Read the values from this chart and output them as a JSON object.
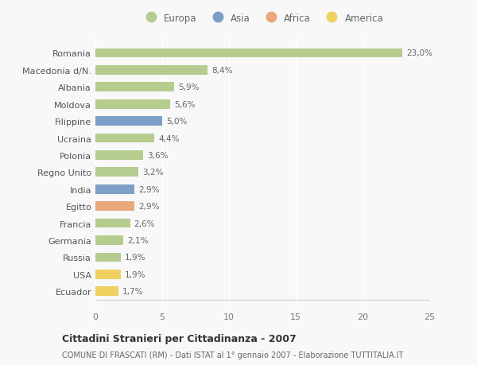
{
  "countries": [
    "Romania",
    "Macedonia d/N.",
    "Albania",
    "Moldova",
    "Filippine",
    "Ucraina",
    "Polonia",
    "Regno Unito",
    "India",
    "Egitto",
    "Francia",
    "Germania",
    "Russia",
    "USA",
    "Ecuador"
  ],
  "values": [
    23.0,
    8.4,
    5.9,
    5.6,
    5.0,
    4.4,
    3.6,
    3.2,
    2.9,
    2.9,
    2.6,
    2.1,
    1.9,
    1.9,
    1.7
  ],
  "labels": [
    "23,0%",
    "8,4%",
    "5,9%",
    "5,6%",
    "5,0%",
    "4,4%",
    "3,6%",
    "3,2%",
    "2,9%",
    "2,9%",
    "2,6%",
    "2,1%",
    "1,9%",
    "1,9%",
    "1,7%"
  ],
  "continents": [
    "Europa",
    "Europa",
    "Europa",
    "Europa",
    "Asia",
    "Europa",
    "Europa",
    "Europa",
    "Asia",
    "Africa",
    "Europa",
    "Europa",
    "Europa",
    "America",
    "America"
  ],
  "colors": {
    "Europa": "#b5cc8e",
    "Asia": "#7b9fc7",
    "Africa": "#e8a87c",
    "America": "#f0d060"
  },
  "title": "Cittadini Stranieri per Cittadinanza - 2007",
  "subtitle": "COMUNE DI FRASCATI (RM) - Dati ISTAT al 1° gennaio 2007 - Elaborazione TUTTITALIA.IT",
  "xlim": [
    0,
    25
  ],
  "xticks": [
    0,
    5,
    10,
    15,
    20,
    25
  ],
  "background_color": "#f8f8f8",
  "grid_color": "#ffffff",
  "bar_height": 0.55,
  "label_fontsize": 7.5,
  "ytick_fontsize": 8,
  "xtick_fontsize": 8
}
